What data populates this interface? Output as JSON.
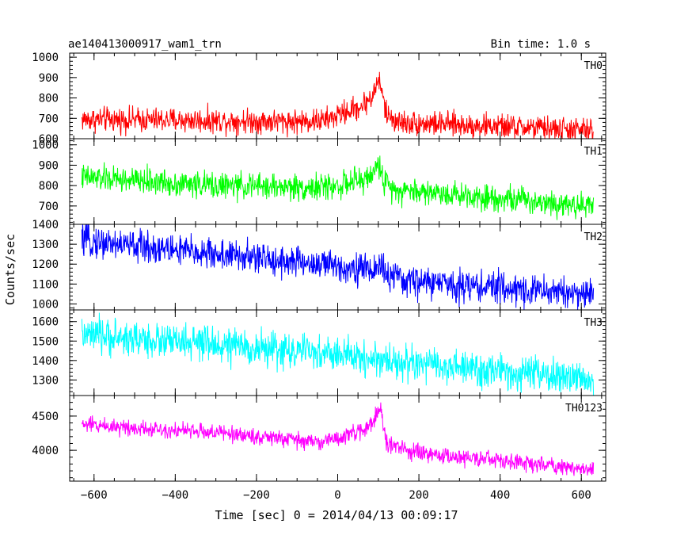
{
  "header": {
    "title": "ae140413000917_wam1_trn",
    "bin_time": "Bin time: 1.0 s"
  },
  "chart_data": {
    "type": "line",
    "xlabel": "Time [sec] 0 = 2014/04/13 00:09:17",
    "ylabel": "Counts/sec",
    "xlim": [
      -660,
      660
    ],
    "x_range": [
      -630,
      630
    ],
    "xticks": [
      -600,
      -400,
      -200,
      0,
      200,
      400,
      600
    ],
    "bin_time_s": 1.0,
    "series": [
      {
        "name": "TH0",
        "color": "#ff0000",
        "ylim": [
          600,
          1020
        ],
        "yticks": [
          600,
          700,
          800,
          900,
          1000
        ],
        "trend": [
          [
            -630,
            695
          ],
          [
            -100,
            685
          ],
          [
            -30,
            690
          ],
          [
            0,
            715
          ],
          [
            60,
            760
          ],
          [
            90,
            820
          ],
          [
            100,
            900
          ],
          [
            105,
            860
          ],
          [
            120,
            720
          ],
          [
            150,
            680
          ],
          [
            400,
            660
          ],
          [
            630,
            640
          ]
        ],
        "noise": 30
      },
      {
        "name": "TH1",
        "color": "#00ff00",
        "ylim": [
          610,
          1030
        ],
        "yticks": [
          700,
          800,
          900,
          1000
        ],
        "trend": [
          [
            -630,
            840
          ],
          [
            -300,
            800
          ],
          [
            -50,
            790
          ],
          [
            0,
            800
          ],
          [
            70,
            830
          ],
          [
            95,
            880
          ],
          [
            105,
            900
          ],
          [
            115,
            810
          ],
          [
            150,
            780
          ],
          [
            400,
            740
          ],
          [
            630,
            700
          ]
        ],
        "noise": 32
      },
      {
        "name": "TH2",
        "color": "#0000ff",
        "ylim": [
          970,
          1400
        ],
        "yticks": [
          1000,
          1100,
          1200,
          1300,
          1400
        ],
        "trend": [
          [
            -630,
            1320
          ],
          [
            -300,
            1250
          ],
          [
            0,
            1190
          ],
          [
            90,
            1170
          ],
          [
            105,
            1200
          ],
          [
            120,
            1150
          ],
          [
            150,
            1120
          ],
          [
            400,
            1080
          ],
          [
            630,
            1050
          ]
        ],
        "noise": 40
      },
      {
        "name": "TH3",
        "color": "#00ffff",
        "ylim": [
          1220,
          1660
        ],
        "yticks": [
          1300,
          1400,
          1500,
          1600
        ],
        "trend": [
          [
            -630,
            1530
          ],
          [
            -300,
            1480
          ],
          [
            0,
            1430
          ],
          [
            200,
            1380
          ],
          [
            400,
            1340
          ],
          [
            630,
            1300
          ]
        ],
        "noise": 45
      },
      {
        "name": "TH0123",
        "color": "#ff00ff",
        "ylim": [
          3550,
          4800
        ],
        "yticks": [
          4000,
          4500
        ],
        "trend": [
          [
            -630,
            4380
          ],
          [
            -300,
            4260
          ],
          [
            -50,
            4120
          ],
          [
            0,
            4180
          ],
          [
            60,
            4280
          ],
          [
            90,
            4450
          ],
          [
            105,
            4620
          ],
          [
            120,
            4100
          ],
          [
            200,
            3950
          ],
          [
            400,
            3850
          ],
          [
            630,
            3720
          ]
        ],
        "noise": 60
      }
    ]
  }
}
